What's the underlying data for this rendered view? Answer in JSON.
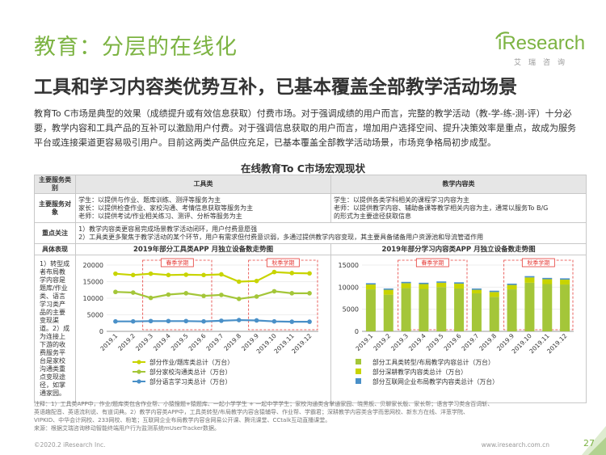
{
  "header": {
    "title": "教育：分层的在线化",
    "subtitle": "工具和学习内容类优势互补，已基本覆盖全部教学活动场景"
  },
  "logo": {
    "brand": "iResearch",
    "tagline": "艾瑞咨询"
  },
  "intro": "教育To C市场是典型的效果（成绩提升或有效信息获取）付费市场。对于强调成绩的用户而言，完整的教学活动（教-学-练-测-评）十分必要，教学内容和工具产品的互补可以激励用户付费。对于强调信息获取的用户而言，增加用户选择空间、提升决策效率是重点，故成为服务平台或连接渠道更容易吸引用户。目前这两类产品供应充足，已基本覆盖全部教学活动场景，市场竞争格局初步成型。",
  "chart_title": "在线教育To C市场宏观现状",
  "table": {
    "col_header_0": "主要服务类别",
    "col_header_1": "工具类",
    "col_header_2": "教学内容类",
    "row1_label": "主要服务对象",
    "row1_tool_lines": [
      "学生：以提供与作业、题库训练、测评等服务为主",
      "家长：以提供检查作业、家校沟通、考情信息获取等服务为主",
      "老师：以提供考试/作业相关练习、测评、分析等服务为主"
    ],
    "row1_content_lines": [
      "学生：以提供各类学科相关的课程学习内容为主",
      "老师：以提供教学内容、辅助备课等教学相关内容为主，通常以服务To B/G",
      "的形式为主要途径获取信息"
    ],
    "row2_label": "重点关注",
    "row2_lines": [
      "1）教学内容类更容易完成场景教学活动闭环，用户付费意愿强",
      "2）工具类更多聚焦于教学活动的某个环节，用户有需求但付费意识弱，多通过提供教学内容变现，其主要具备储备用户资源池和导流管道作用"
    ],
    "row3_label": "具体表现",
    "side_text": "1）转型成者布局教学内容是题库/作业类、语言学习类产品的主要变现渠道。2）成为连接上下游的收费服务平台是家校沟通类重点变现途径，如掌通家园。"
  },
  "chart_data": [
    {
      "type": "line",
      "title": "2019年部分工具类APP 月独立设备数走势图",
      "categories": [
        "2019.1",
        "2019.2",
        "2019.3",
        "2019.4",
        "2019.5",
        "2019.6",
        "2019.7",
        "2019.8",
        "2019.9",
        "2019.10",
        "2019.11",
        "2019.12"
      ],
      "ylim": [
        0,
        20000
      ],
      "yticks": [
        0,
        5000,
        10000,
        15000,
        20000
      ],
      "series": [
        {
          "name": "部分作业/题库类总计（万台）",
          "color": "#c8d400",
          "values": [
            17400,
            17000,
            17400,
            17000,
            17100,
            17000,
            17200,
            15000,
            15200,
            17900,
            17600,
            17500
          ]
        },
        {
          "name": "部分家校沟通类总计（万台）",
          "color": "#a4c639",
          "values": [
            11900,
            11700,
            10100,
            11100,
            11500,
            10700,
            11000,
            9800,
            10500,
            12100,
            11500,
            11500
          ]
        },
        {
          "name": "部分语言学习类总计（万台）",
          "color": "#4a90c8",
          "values": [
            3000,
            3000,
            3100,
            3100,
            3100,
            3000,
            3200,
            3400,
            3300,
            3000,
            2900,
            2900
          ]
        }
      ],
      "annotations": [
        "春季学期",
        "秋季学期"
      ]
    },
    {
      "type": "bar",
      "title": "2019年部分学习内容类APP 月独立设备数走势图",
      "categories": [
        "2019.1",
        "2019.2",
        "2019.3",
        "2019.4",
        "2019.5",
        "2019.6",
        "2019.7",
        "2019.8",
        "2019.9",
        "2019.10",
        "2019.11",
        "2019.12"
      ],
      "ylim": [
        0,
        15000
      ],
      "yticks": [
        0,
        5000,
        10000,
        15000
      ],
      "stacked": true,
      "series": [
        {
          "name": "部分工具类转型/布局教学内容总计（万台）",
          "color": "#a4c639",
          "values": [
            9500,
            8300,
            9800,
            9600,
            10000,
            9700,
            8600,
            7800,
            9500,
            11000,
            10700,
            10600
          ]
        },
        {
          "name": "部分深耕教学内容类总计（万台）",
          "color": "#c8d400",
          "values": [
            1100,
            1100,
            1100,
            1100,
            1000,
            1100,
            800,
            1100,
            1000,
            1200,
            1100,
            1100
          ]
        },
        {
          "name": "部分互联网企业布局教学内容类总计（万台）",
          "color": "#4a90c8",
          "values": [
            300,
            300,
            300,
            300,
            300,
            300,
            300,
            300,
            300,
            300,
            300,
            300
          ]
        }
      ],
      "annotations": [
        "春季学期",
        "秋季学期"
      ]
    }
  ],
  "notes": [
    "注释：1）工具类APP中，作业/题库类包含作业帮、小猿搜题+猿题库、一起小学学生 + 一起中学学生；家校沟通类含掌通家园、晓黑板、贝聊家长版、家长帮；语言学习类含百词斩、",
    "英语趣配音、英语流利说、有道词典。2）教学内容类APP中，工具类转型/布局教学内容含猿辅导、作业帮、学霸君；深耕教学内容类含学而思网校、新东方在线、洋葱学院、",
    "VIPKID、中华会计网校、233网校、粉笔；互联网企业布局教学内容含网易公开课、腾讯课堂、CCtalk互动直播课堂。",
    "来源：根据艾瑞咨询移动智能终端用户行为监测系统mUserTracker数据。"
  ],
  "footer": {
    "copyright": "©2020.2 iResearch Inc.",
    "site": "www.iresearch.com.cn",
    "page": "27"
  }
}
